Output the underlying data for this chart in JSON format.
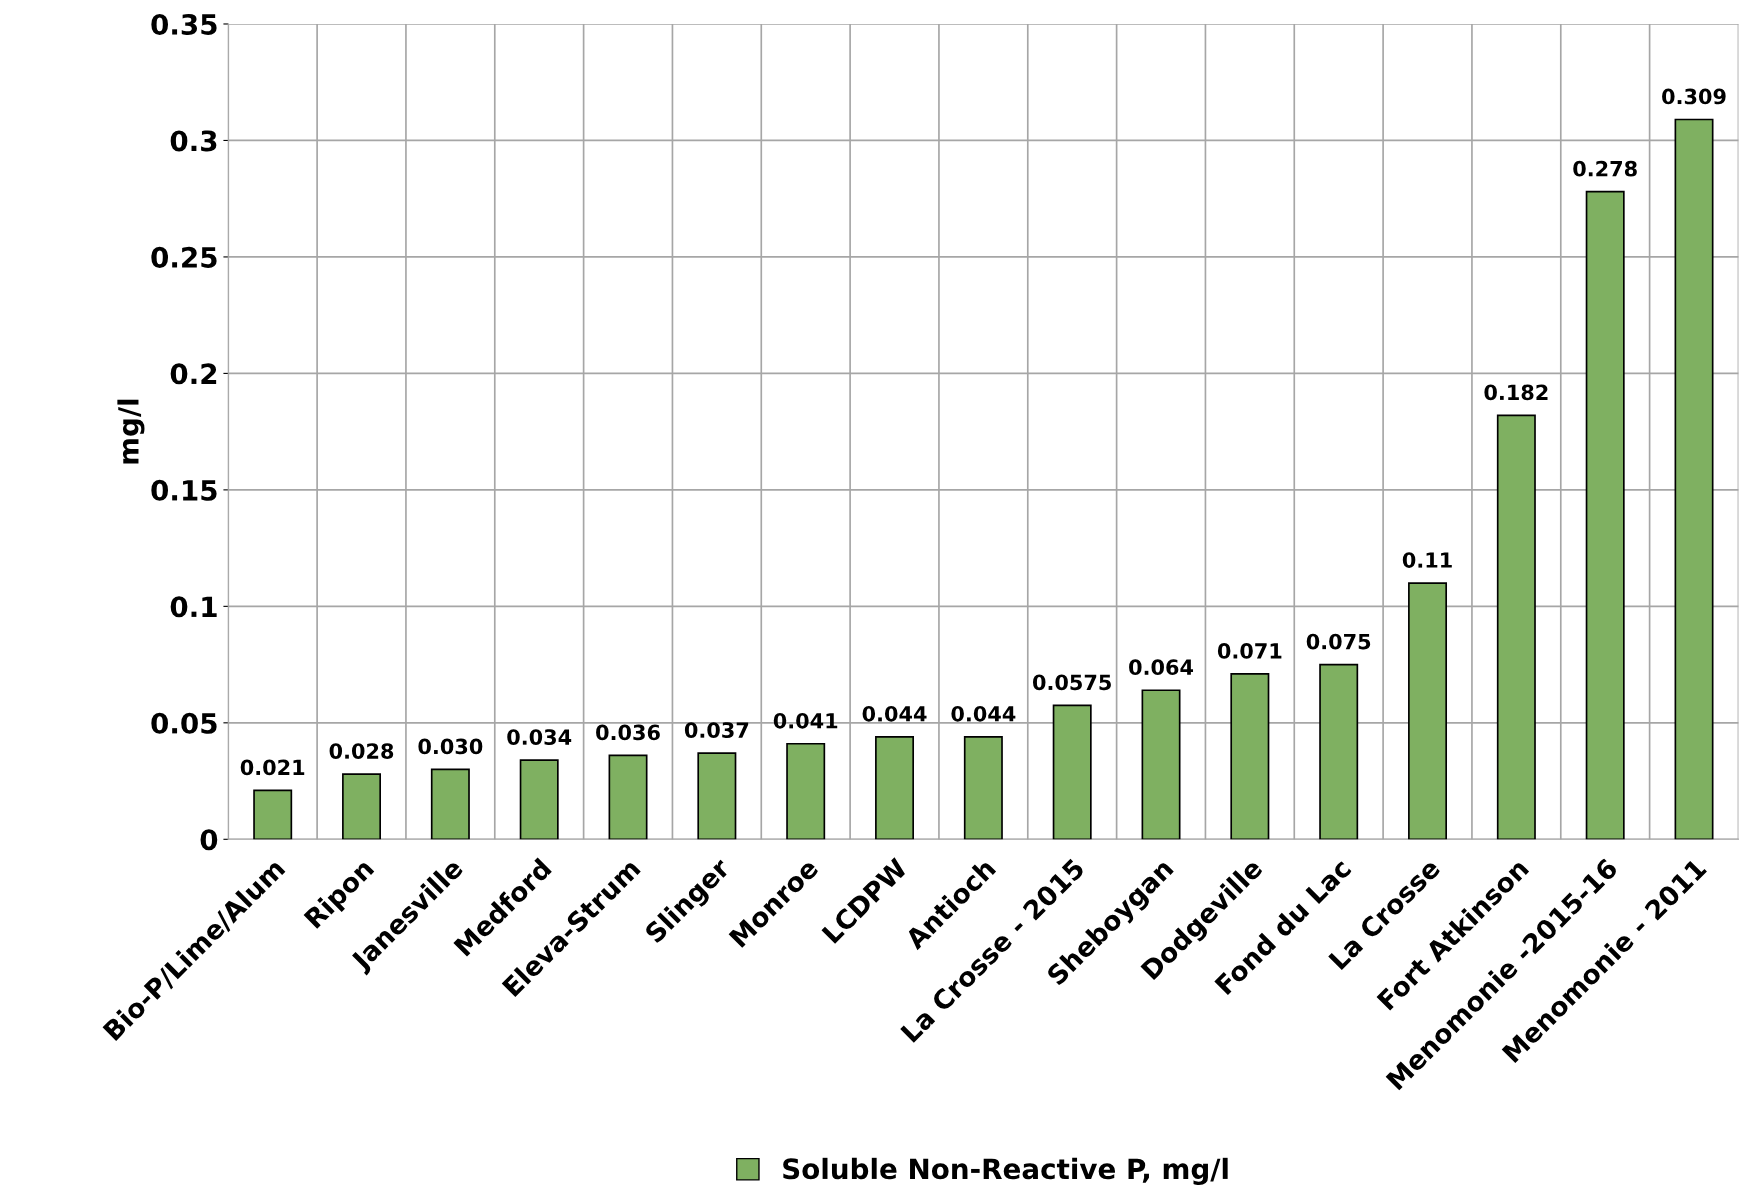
{
  "chart_data": {
    "type": "bar",
    "ylabel": "mg/l",
    "categories": [
      "Bio-P/Lime/Alum",
      "Ripon",
      "Janesville",
      "Medford",
      "Eleva-Strum",
      "Slinger",
      "Monroe",
      "LCDPW",
      "Antioch",
      "La Crosse - 2015",
      "Sheboygan",
      "Dodgeville",
      "Fond du Lac",
      "La Crosse",
      "Fort Atkinson",
      "Menomonie -2015-16",
      "Menomonie - 2011"
    ],
    "series": [
      {
        "name": "Soluble Non-Reactive P, mg/l",
        "color": "#7fb061",
        "values": [
          0.021,
          0.028,
          0.03,
          0.034,
          0.036,
          0.037,
          0.041,
          0.044,
          0.044,
          0.0575,
          0.064,
          0.071,
          0.075,
          0.11,
          0.182,
          0.278,
          0.309
        ],
        "value_labels": [
          "0.021",
          "0.028",
          "0.030",
          "0.034",
          "0.036",
          "0.037",
          "0.041",
          "0.044",
          "0.044",
          "0.0575",
          "0.064",
          "0.071",
          "0.075",
          "0.11",
          "0.182",
          "0.278",
          "0.309"
        ]
      }
    ],
    "ylim": [
      0,
      0.35
    ],
    "yticks": [
      0,
      0.05,
      0.1,
      0.15,
      0.2,
      0.25,
      0.3,
      0.35
    ],
    "grid": true,
    "legend": "bottom"
  }
}
